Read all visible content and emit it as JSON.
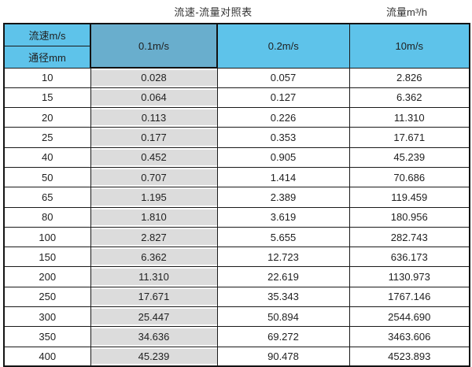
{
  "header": {
    "table_title": "流速-流量对照表",
    "flow_unit_title": "流量m³/h"
  },
  "table": {
    "corner_top": "流速m/s",
    "corner_bottom": "通径mm",
    "col_headers": [
      "0.1m/s",
      "0.2m/s",
      "10m/s"
    ],
    "rows": [
      [
        "10",
        "0.028",
        "0.057",
        "2.826"
      ],
      [
        "15",
        "0.064",
        "0.127",
        "6.362"
      ],
      [
        "20",
        "0.113",
        "0.226",
        "11.310"
      ],
      [
        "25",
        "0.177",
        "0.353",
        "17.671"
      ],
      [
        "40",
        "0.452",
        "0.905",
        "45.239"
      ],
      [
        "50",
        "0.707",
        "1.414",
        "70.686"
      ],
      [
        "65",
        "1.195",
        "2.389",
        "119.459"
      ],
      [
        "80",
        "1.810",
        "3.619",
        "180.956"
      ],
      [
        "100",
        "2.827",
        "5.655",
        "282.743"
      ],
      [
        "150",
        "6.362",
        "12.723",
        "636.173"
      ],
      [
        "200",
        "11.310",
        "22.619",
        "1130.973"
      ],
      [
        "250",
        "17.671",
        "35.343",
        "1767.146"
      ],
      [
        "300",
        "25.447",
        "50.894",
        "2544.690"
      ],
      [
        "350",
        "34.636",
        "69.272",
        "3463.606"
      ],
      [
        "400",
        "45.239",
        "90.478",
        "4523.893"
      ]
    ]
  },
  "colors": {
    "header_light_blue": "#5ec3ea",
    "header_dark_blue": "#69aecd",
    "highlight_column_gray": "#dcdcdc",
    "grid_border": "#1a1a1a"
  },
  "chart_data": {
    "type": "table",
    "title": "流速-流量对照表",
    "unit_label": "流量m³/h",
    "row_axis_label": "通径mm",
    "col_axis_label": "流速m/s",
    "columns": [
      "通径mm",
      "0.1m/s",
      "0.2m/s",
      "10m/s"
    ],
    "rows": [
      [
        10,
        0.028,
        0.057,
        2.826
      ],
      [
        15,
        0.064,
        0.127,
        6.362
      ],
      [
        20,
        0.113,
        0.226,
        11.31
      ],
      [
        25,
        0.177,
        0.353,
        17.671
      ],
      [
        40,
        0.452,
        0.905,
        45.239
      ],
      [
        50,
        0.707,
        1.414,
        70.686
      ],
      [
        65,
        1.195,
        2.389,
        119.459
      ],
      [
        80,
        1.81,
        3.619,
        180.956
      ],
      [
        100,
        2.827,
        5.655,
        282.743
      ],
      [
        150,
        6.362,
        12.723,
        636.173
      ],
      [
        200,
        11.31,
        22.619,
        1130.973
      ],
      [
        250,
        17.671,
        35.343,
        1767.146
      ],
      [
        300,
        25.447,
        50.894,
        2544.69
      ],
      [
        350,
        34.636,
        69.272,
        3463.606
      ],
      [
        400,
        45.239,
        90.478,
        4523.893
      ]
    ]
  }
}
